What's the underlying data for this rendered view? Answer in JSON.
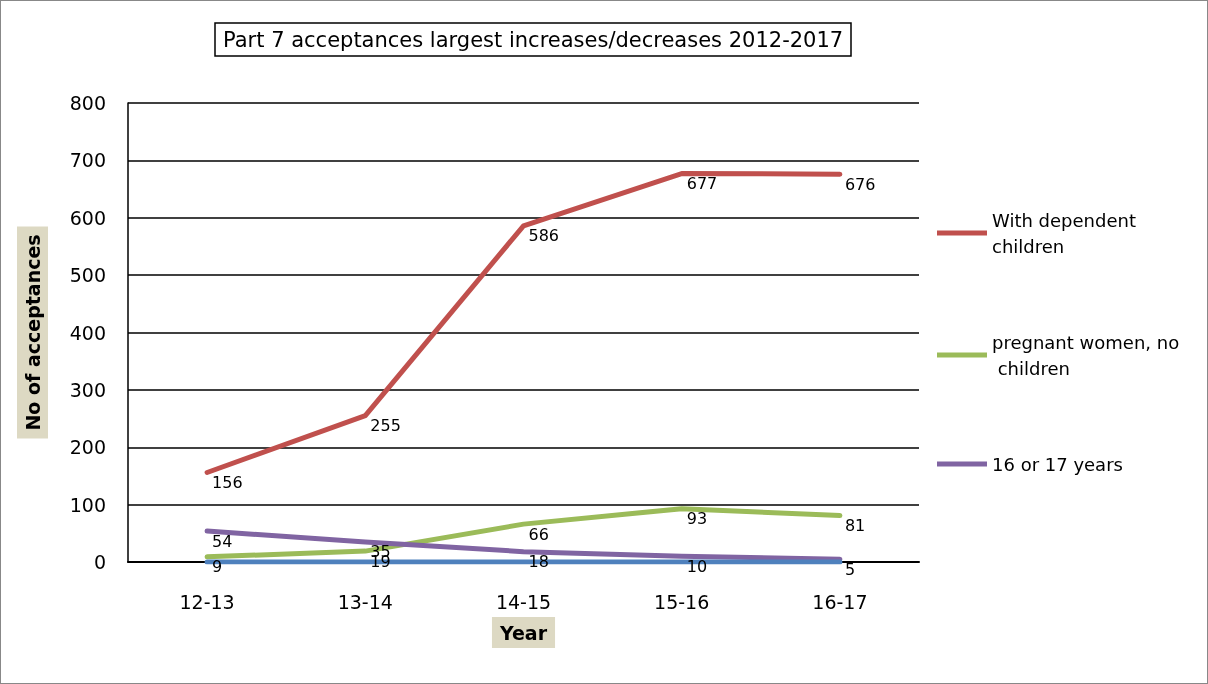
{
  "chart_data": {
    "type": "line",
    "title": "Part 7 acceptances largest increases/decreases 2012-2017",
    "xlabel": "Year",
    "ylabel": "No of acceptances",
    "categories": [
      "12-13",
      "13-14",
      "14-15",
      "15-16",
      "16-17"
    ],
    "series": [
      {
        "name": "With dependent children",
        "color": "#c0504d",
        "values": [
          156,
          255,
          586,
          677,
          676
        ]
      },
      {
        "name": "pregnant women, no children",
        "color": "#9bbb59",
        "values": [
          9,
          19,
          66,
          93,
          81
        ]
      },
      {
        "name": "16 or 17 years",
        "color": "#8064a2",
        "values": [
          54,
          35,
          18,
          10,
          5
        ]
      },
      {
        "color": "#4f81bd",
        "values": [
          0,
          0,
          0,
          0,
          0
        ],
        "data_labels": false
      }
    ],
    "ylim": [
      0,
      800
    ],
    "yticks": [
      0,
      100,
      200,
      300,
      400,
      500,
      600,
      700,
      800
    ],
    "grid": "y",
    "legend": "right",
    "marker": "none",
    "line_style": "solid",
    "data_labels": true
  }
}
